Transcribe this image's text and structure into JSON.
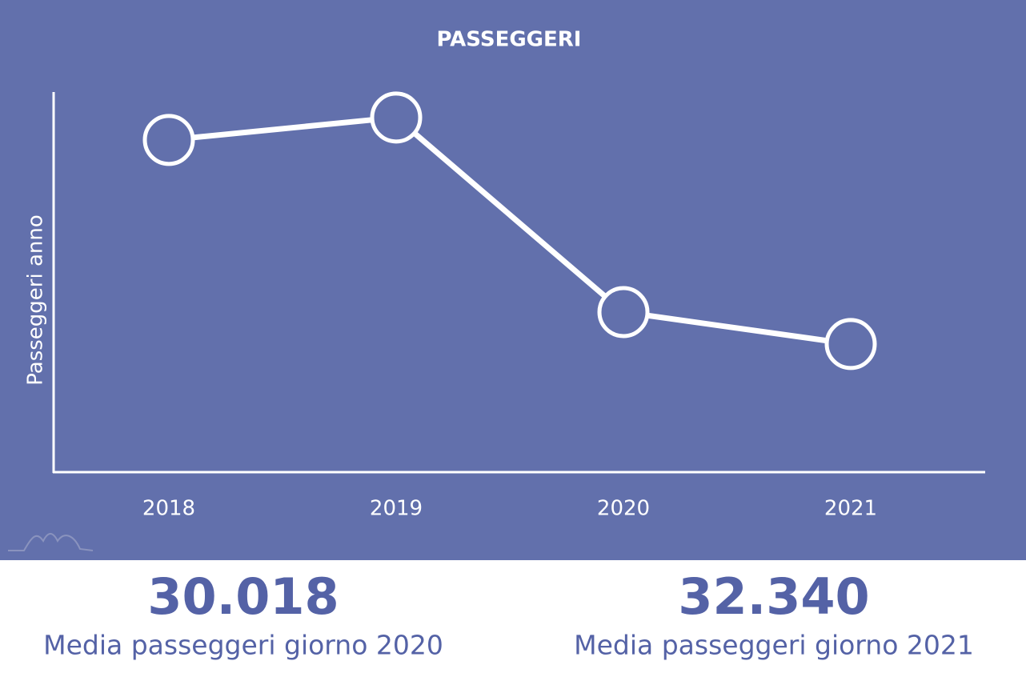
{
  "chart_data": {
    "type": "line",
    "title": "PASSEGGERI",
    "y_label": "Passeggeri anno",
    "categories": [
      "2018",
      "2019",
      "2020",
      "2021"
    ],
    "values": [
      87.4,
      93.3,
      42.1,
      33.7
    ],
    "color": "#ffffff",
    "ylim": [
      0,
      100
    ]
  },
  "stats": [
    {
      "value": "30.018",
      "label": "Media passeggeri giorno 2020"
    },
    {
      "value": "32.340",
      "label": "Media passeggeri giorno 2021"
    }
  ]
}
